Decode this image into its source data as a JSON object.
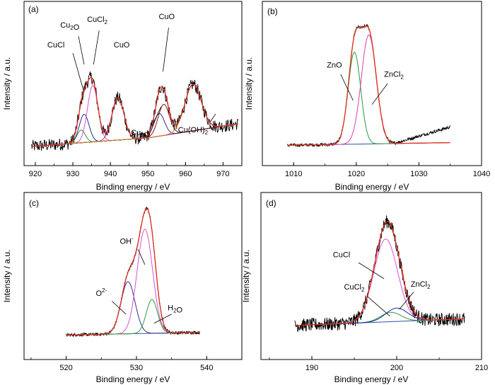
{
  "figure": {
    "panels": [
      {
        "id": "panel-a",
        "label": "(a)",
        "xlabel": "Binding energy / eV",
        "ylabel": "Intensity / a.u.",
        "xlim": [
          917,
          975
        ],
        "ylim": [
          0,
          1.0
        ],
        "xticks": [
          920,
          930,
          940,
          950,
          960,
          970
        ],
        "xticklabels": [
          "920",
          "930",
          "940",
          "950",
          "960",
          "970"
        ],
        "background": {
          "x": [
            919,
            950,
            974
          ],
          "y": [
            0.02,
            0.08,
            0.18
          ]
        },
        "envelope_color": "#e03020",
        "raw_color": "#000000",
        "raw_noise": 0.045,
        "components": [
          {
            "name": "CuCl",
            "color": "#1f2f9a",
            "center": 933.0,
            "height": 0.2,
            "width": 1.3
          },
          {
            "name": "Cu2O",
            "color": "#2f9a3a",
            "center": 932.2,
            "height": 0.09,
            "width": 1.1
          },
          {
            "name": "CuCl2",
            "color": "#d84fd8",
            "center": 935.3,
            "height": 0.4,
            "width": 1.4
          },
          {
            "name": "CuO",
            "color": "#c02a90",
            "center": 942.0,
            "height": 0.3,
            "width": 1.6
          },
          {
            "name": "Cu2O",
            "color": "#3a2a7a",
            "center": 953.0,
            "height": 0.16,
            "width": 1.4
          },
          {
            "name": "CuO",
            "color": "#7a1a1a",
            "center": 954.2,
            "height": 0.22,
            "width": 1.5
          },
          {
            "name": "Cu(OH)2",
            "color": "#c89020",
            "center": 962.0,
            "height": 0.33,
            "width": 2.2
          }
        ],
        "labels": [
          {
            "parts": [
              {
                "t": "CuCl"
              }
            ],
            "at": [
              925.5,
              0.72
            ]
          },
          {
            "parts": [
              {
                "t": "Cu"
              },
              {
                "t": "2",
                "sub": true
              },
              {
                "t": "O"
              }
            ],
            "at": [
              929.2,
              0.86
            ]
          },
          {
            "parts": [
              {
                "t": "CuCl"
              },
              {
                "t": "2",
                "sub": true
              }
            ],
            "at": [
              936.5,
              0.9
            ]
          },
          {
            "parts": [
              {
                "t": "CuO"
              }
            ],
            "at": [
              943.0,
              0.72
            ]
          },
          {
            "parts": [
              {
                "t": "CuO"
              }
            ],
            "at": [
              955.0,
              0.92
            ]
          },
          {
            "parts": [
              {
                "t": "Cu"
              },
              {
                "t": "2",
                "sub": true
              },
              {
                "t": "O"
              }
            ],
            "at": [
              948.0,
              0.1
            ]
          },
          {
            "parts": [
              {
                "t": "Cu(OH)"
              },
              {
                "t": "2",
                "sub": true
              }
            ],
            "at": [
              962.0,
              0.12
            ]
          }
        ],
        "leaders": [
          {
            "from": [
              930.0,
              0.68
            ],
            "to": [
              933.0,
              0.4
            ]
          },
          {
            "from": [
              931.5,
              0.8
            ],
            "to": [
              933.0,
              0.6
            ]
          },
          {
            "from": [
              937.0,
              0.84
            ],
            "to": [
              935.5,
              0.6
            ]
          },
          {
            "from": [
              955.5,
              0.86
            ],
            "to": [
              954.0,
              0.55
            ]
          },
          {
            "from": [
              951.5,
              0.19
            ],
            "to": [
              953.5,
              0.3
            ]
          },
          {
            "from": [
              966.5,
              0.19
            ],
            "to": [
              968.0,
              0.25
            ]
          }
        ]
      },
      {
        "id": "panel-b",
        "label": "(b)",
        "xlabel": "Binding energy / eV",
        "ylabel": "Intensity / a.u.",
        "xlim": [
          1005,
          1040
        ],
        "ylim": [
          0,
          1.0
        ],
        "xticks": [
          1010,
          1020,
          1030,
          1040
        ],
        "xticklabels": [
          "1010",
          "1020",
          "1030",
          "1040"
        ],
        "background": {
          "x": [
            1009,
            1035
          ],
          "y": [
            0.03,
            0.05
          ]
        },
        "envelope_color": "#e03020",
        "raw_color": "#000000",
        "raw_noise": 0.012,
        "raw_extra": {
          "start": 1026,
          "end": 1035,
          "rise": 0.12
        },
        "components": [
          {
            "name": "ZnO",
            "color": "#2a9a3a",
            "center": 1019.7,
            "height": 0.7,
            "width": 1.0
          },
          {
            "name": "ZnCl2",
            "color": "#d83fb8",
            "center": 1022.0,
            "height": 0.83,
            "width": 1.2
          }
        ],
        "labels": [
          {
            "parts": [
              {
                "t": "ZnO"
              }
            ],
            "at": [
              1016.5,
              0.62
            ]
          },
          {
            "parts": [
              {
                "t": "ZnCl"
              },
              {
                "t": "2",
                "sub": true
              }
            ],
            "at": [
              1026.0,
              0.55
            ]
          }
        ],
        "leaders": [
          {
            "from": [
              1017.5,
              0.57
            ],
            "to": [
              1019.5,
              0.37
            ]
          },
          {
            "from": [
              1025.0,
              0.5
            ],
            "to": [
              1022.5,
              0.34
            ]
          }
        ]
      },
      {
        "id": "panel-c",
        "label": "(c)",
        "xlabel": "Binding energy / eV",
        "ylabel": "Intensity / a.u.",
        "xlim": [
          514,
          545
        ],
        "ylim": [
          0,
          1.0
        ],
        "xticks": [
          520,
          530,
          540
        ],
        "xticklabels": [
          "520",
          "530",
          "540"
        ],
        "background": {
          "x": [
            520,
            539
          ],
          "y": [
            0.06,
            0.08
          ]
        },
        "envelope_color": "#e03020",
        "raw_color": "#000000",
        "raw_noise": 0.012,
        "components": [
          {
            "name": "O2-",
            "color": "#3a2a8a",
            "center": 528.8,
            "height": 0.4,
            "width": 1.0
          },
          {
            "name": "OH-",
            "color": "#d84fd8",
            "center": 531.2,
            "height": 0.8,
            "width": 1.1
          },
          {
            "name": "H2O",
            "color": "#2a9a3a",
            "center": 532.2,
            "height": 0.26,
            "width": 0.8
          }
        ],
        "labels": [
          {
            "parts": [
              {
                "t": "OH"
              },
              {
                "t": "-",
                "sup": true
              }
            ],
            "at": [
              528.6,
              0.76
            ]
          },
          {
            "parts": [
              {
                "t": "O"
              },
              {
                "t": "2-",
                "sup": true
              }
            ],
            "at": [
              525.0,
              0.36
            ]
          },
          {
            "parts": [
              {
                "t": "H"
              },
              {
                "t": "2",
                "sub": true
              },
              {
                "t": "O"
              }
            ],
            "at": [
              535.5,
              0.25
            ]
          }
        ],
        "leaders": [
          {
            "from": [
              530.2,
              0.72
            ],
            "to": [
              531.2,
              0.6
            ]
          },
          {
            "from": [
              526.5,
              0.32
            ],
            "to": [
              528.5,
              0.22
            ]
          },
          {
            "from": [
              535.0,
              0.22
            ],
            "to": [
              532.5,
              0.15
            ]
          }
        ]
      },
      {
        "id": "panel-d",
        "label": "(d)",
        "xlabel": "Binding energy / eV",
        "ylabel": "Intensity / a.u.",
        "xlim": [
          184,
          210
        ],
        "ylim": [
          0,
          1.0
        ],
        "xticks": [
          190,
          200,
          210
        ],
        "xticklabels": [
          "190",
          "200",
          "210"
        ],
        "background": {
          "x": [
            188,
            208
          ],
          "y": [
            0.13,
            0.18
          ]
        },
        "envelope_color": "#e03020",
        "raw_color": "#000000",
        "raw_noise": 0.05,
        "components": [
          {
            "name": "CuCl",
            "color": "#d84fd8",
            "center": 198.7,
            "height": 0.62,
            "width": 1.4
          },
          {
            "name": "CuCl2",
            "color": "#2a9a3a",
            "center": 199.3,
            "height": 0.07,
            "width": 1.2
          },
          {
            "name": "ZnCl2",
            "color": "#1f2f9a",
            "center": 200.0,
            "height": 0.1,
            "width": 1.3
          }
        ],
        "labels": [
          {
            "parts": [
              {
                "t": "CuCl"
              }
            ],
            "at": [
              193.5,
              0.64
            ]
          },
          {
            "parts": [
              {
                "t": "CuCl"
              },
              {
                "t": "2",
                "sub": true
              }
            ],
            "at": [
              195.0,
              0.4
            ]
          },
          {
            "parts": [
              {
                "t": "ZnCl"
              },
              {
                "t": "2",
                "sub": true
              }
            ],
            "at": [
              202.8,
              0.42
            ]
          }
        ],
        "leaders": [
          {
            "from": [
              195.5,
              0.6
            ],
            "to": [
              198.5,
              0.48
            ]
          },
          {
            "from": [
              196.5,
              0.35
            ],
            "to": [
              199.2,
              0.2
            ]
          },
          {
            "from": [
              202.0,
              0.38
            ],
            "to": [
              200.3,
              0.25
            ]
          }
        ]
      }
    ]
  },
  "chart_data": [
    {
      "type": "line",
      "panel": "(a)",
      "xlabel": "Binding energy / eV",
      "ylabel": "Intensity / a.u.",
      "xlim": [
        917,
        975
      ],
      "series": [
        {
          "name": "CuCl",
          "center": 933.0
        },
        {
          "name": "Cu2O",
          "center": 932.2
        },
        {
          "name": "CuCl2",
          "center": 935.3
        },
        {
          "name": "CuO",
          "center": 942.0
        },
        {
          "name": "Cu2O",
          "center": 953.0
        },
        {
          "name": "CuO",
          "center": 954.2
        },
        {
          "name": "Cu(OH)2",
          "center": 962.0
        }
      ]
    },
    {
      "type": "line",
      "panel": "(b)",
      "xlabel": "Binding energy / eV",
      "ylabel": "Intensity / a.u.",
      "xlim": [
        1005,
        1040
      ],
      "series": [
        {
          "name": "ZnO",
          "center": 1019.7
        },
        {
          "name": "ZnCl2",
          "center": 1022.0
        }
      ]
    },
    {
      "type": "line",
      "panel": "(c)",
      "xlabel": "Binding energy / eV",
      "ylabel": "Intensity / a.u.",
      "xlim": [
        514,
        545
      ],
      "series": [
        {
          "name": "O2-",
          "center": 528.8
        },
        {
          "name": "OH-",
          "center": 531.2
        },
        {
          "name": "H2O",
          "center": 532.2
        }
      ]
    },
    {
      "type": "line",
      "panel": "(d)",
      "xlabel": "Binding energy / eV",
      "ylabel": "Intensity / a.u.",
      "xlim": [
        184,
        210
      ],
      "series": [
        {
          "name": "CuCl",
          "center": 198.7
        },
        {
          "name": "CuCl2",
          "center": 199.3
        },
        {
          "name": "ZnCl2",
          "center": 200.0
        }
      ]
    }
  ]
}
